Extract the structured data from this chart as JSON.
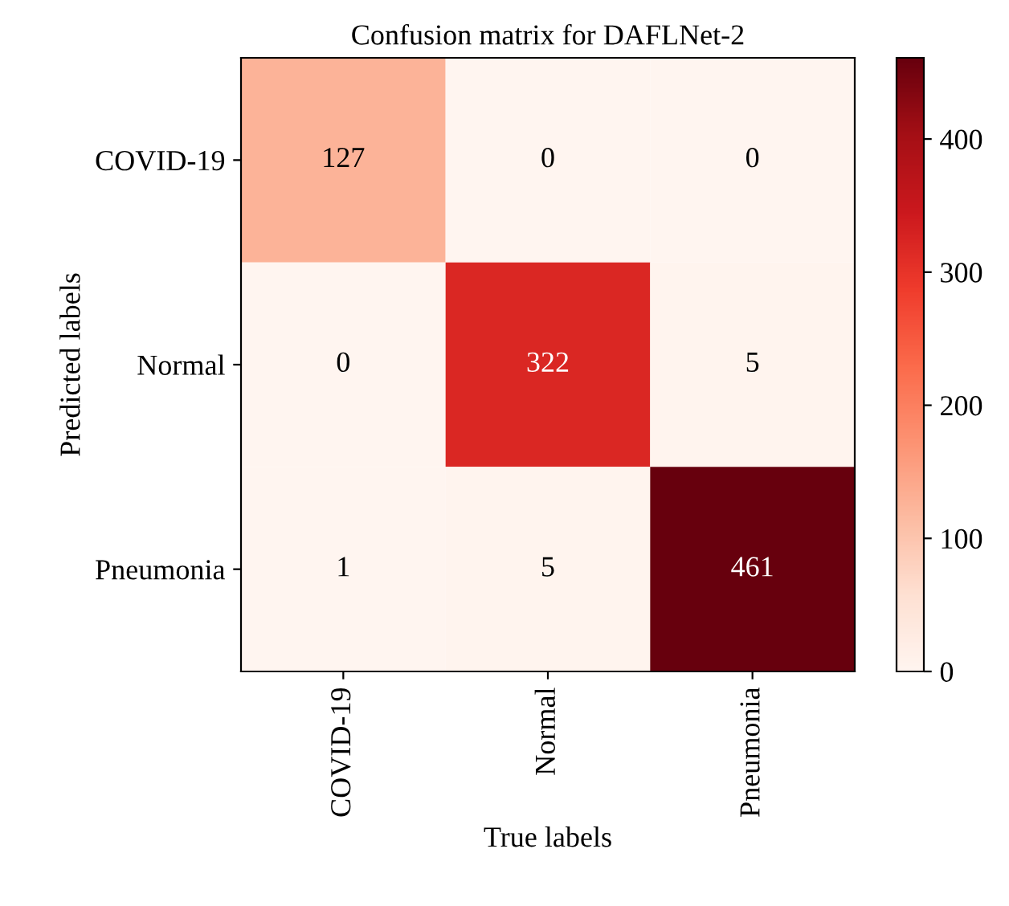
{
  "chart_data": {
    "type": "heatmap",
    "title": "Confusion matrix for DAFLNet-2",
    "xlabel": "True labels",
    "ylabel": "Predicted labels",
    "categories": [
      "COVID-19",
      "Normal",
      "Pneumonia"
    ],
    "y_categories": [
      "COVID-19",
      "Normal",
      "Pneumonia"
    ],
    "cells": [
      [
        127,
        0,
        0
      ],
      [
        0,
        322,
        5
      ],
      [
        1,
        5,
        461
      ]
    ],
    "clim": [
      0,
      461
    ],
    "cticks": [
      0,
      100,
      200,
      300,
      400
    ],
    "data_labels": true,
    "grid": false
  }
}
